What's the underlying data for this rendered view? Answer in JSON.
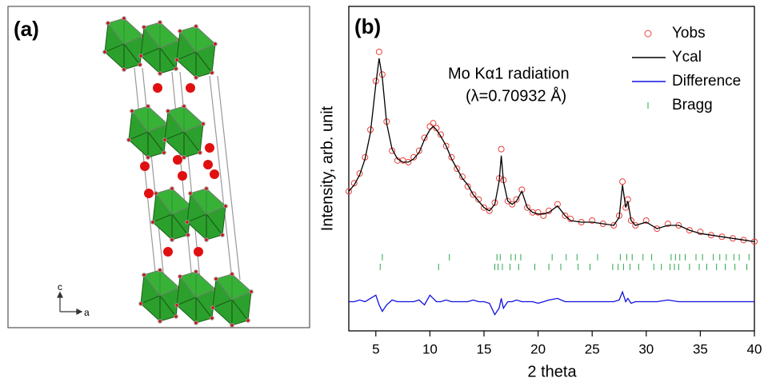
{
  "panel_labels": [
    "(a)",
    "(b)"
  ],
  "structure": {
    "axis_labels": [
      "c",
      "a"
    ]
  },
  "chart_data": {
    "type": "line",
    "x_label": "2 theta",
    "y_label": "Intensity, arb. unit",
    "annotations": [
      "Mo Kα1 radiation",
      "(λ=0.70932 Å)"
    ],
    "xlim": [
      2.5,
      40
    ],
    "xticks": [
      5,
      10,
      15,
      20,
      25,
      30,
      35,
      40
    ],
    "ylim": [
      0,
      100
    ],
    "x": [
      2.5,
      3,
      3.5,
      4,
      4.5,
      5,
      5.3,
      5.6,
      6,
      6.5,
      7,
      7.5,
      8,
      8.5,
      9,
      9.5,
      10,
      10.3,
      10.6,
      11,
      11.5,
      12,
      12.5,
      13,
      13.5,
      14,
      14.5,
      15,
      15.5,
      16,
      16.4,
      16.6,
      16.8,
      17.2,
      17.6,
      18,
      18.5,
      19,
      19.5,
      20,
      20.5,
      21,
      21.8,
      22.5,
      23,
      24,
      25,
      26,
      27,
      27.5,
      27.8,
      28.1,
      28.3,
      28.6,
      29,
      30,
      31,
      32,
      33,
      34,
      35,
      36,
      37,
      38,
      39,
      40
    ],
    "series": [
      {
        "name": "Yobs",
        "color": "#e8413c",
        "marker": "circle",
        "values": [
          43,
          45.5,
          48.5,
          53.5,
          62,
          77,
          86,
          79,
          64.5,
          55.5,
          52.5,
          52.5,
          52,
          53.5,
          55.5,
          59.5,
          63,
          64,
          62.5,
          60.5,
          57,
          53.5,
          50,
          47.5,
          44.5,
          42,
          40.5,
          38,
          37,
          39.5,
          47,
          56,
          46.5,
          40,
          39,
          40.5,
          43.5,
          38,
          36.5,
          36.5,
          35.5,
          37,
          39,
          35.5,
          34.5,
          33.5,
          34,
          33,
          32.5,
          35.5,
          46,
          38,
          40.5,
          34,
          32.5,
          34,
          31.5,
          33,
          32.5,
          31,
          30.5,
          29.5,
          29,
          28.5,
          28,
          27.5
        ]
      },
      {
        "name": "Ycal",
        "color": "#000000",
        "marker": "line",
        "values": [
          43,
          45,
          48,
          53,
          61,
          76,
          84,
          78,
          64,
          56,
          53,
          52,
          52,
          53,
          55,
          59,
          62,
          63,
          62,
          60,
          57,
          53,
          50,
          47,
          45,
          42,
          40,
          38,
          37,
          39,
          46,
          54,
          46,
          40,
          39,
          40,
          43,
          38,
          36.5,
          36,
          36,
          36.5,
          38.5,
          35.5,
          34,
          33.5,
          33.5,
          33,
          32.5,
          35,
          45,
          38,
          40,
          34,
          32.5,
          33.5,
          31.5,
          32.5,
          32.5,
          31,
          30,
          29.5,
          29,
          28.5,
          28,
          27.5
        ]
      },
      {
        "name": "Difference",
        "color": "#1010e0",
        "marker": "line",
        "values": [
          9,
          9,
          9.5,
          9,
          10,
          11,
          8,
          6,
          8,
          9.5,
          9,
          9,
          9,
          9,
          9.5,
          8,
          11,
          10,
          9,
          9,
          9.5,
          9,
          9,
          9,
          9,
          9.5,
          9,
          9,
          8.5,
          5,
          7,
          10,
          7,
          9,
          9,
          9.5,
          9,
          9,
          9,
          8.5,
          9,
          9.5,
          10,
          9,
          9,
          9,
          9,
          9,
          9,
          9.5,
          12,
          9,
          10,
          8.5,
          9,
          9,
          9,
          9.5,
          9,
          9,
          9,
          9,
          9,
          9,
          9,
          9
        ]
      }
    ],
    "bragg": {
      "name": "Bragg",
      "color": "#2aa84a",
      "rows": [
        {
          "y": 22.7,
          "x": [
            5.6,
            11.8,
            16.2,
            16.5,
            17.5,
            17.9,
            18.4,
            21.3,
            22.6,
            23.6,
            25.5,
            27.6,
            28.2,
            28.7,
            29.7,
            30.5,
            32.3,
            32.7,
            33.1,
            33.6,
            34.6,
            35.2,
            36.2,
            36.8,
            37.4,
            38.1,
            38.6,
            39.5
          ]
        },
        {
          "y": 19.7,
          "x": [
            5.4,
            10.8,
            16.0,
            16.3,
            16.7,
            17.4,
            18.2,
            19.7,
            21.0,
            22.1,
            23.7,
            24.8,
            26.9,
            27.4,
            27.9,
            28.5,
            29.3,
            30.7,
            31.4,
            32.2,
            32.6,
            33.0,
            34.0,
            34.9,
            35.6,
            36.5,
            37.3,
            38.2,
            39.3
          ]
        }
      ]
    },
    "legend": "top-right"
  }
}
